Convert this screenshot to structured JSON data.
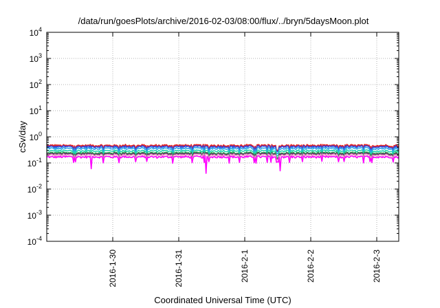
{
  "chart_data": {
    "type": "line",
    "title": "/data/run/goesPlots/archive/2016-02-03/08:00/flux/../bryn/5daysMoon.plot",
    "xlabel": "Coordinated Universal Time (UTC)",
    "ylabel": "cSv/day",
    "y_scale": "log",
    "ylim": [
      0.0001,
      10000
    ],
    "y_ticks": [
      {
        "value": 0.0001,
        "base": "10",
        "exp": "-4"
      },
      {
        "value": 0.001,
        "base": "10",
        "exp": "-3"
      },
      {
        "value": 0.01,
        "base": "10",
        "exp": "-2"
      },
      {
        "value": 0.1,
        "base": "10",
        "exp": "-1"
      },
      {
        "value": 1,
        "base": "10",
        "exp": "0"
      },
      {
        "value": 10,
        "base": "10",
        "exp": "1"
      },
      {
        "value": 100,
        "base": "10",
        "exp": "2"
      },
      {
        "value": 1000,
        "base": "10",
        "exp": "3"
      },
      {
        "value": 10000,
        "base": "10",
        "exp": "4"
      }
    ],
    "xlim": [
      "2016-01-29 00:00",
      "2016-02-03 08:00"
    ],
    "x_ticks": [
      {
        "value": "2016-01-30 00:00",
        "label": "2016-1-30"
      },
      {
        "value": "2016-01-31 00:00",
        "label": "2016-1-31"
      },
      {
        "value": "2016-02-01 00:00",
        "label": "2016-2-1"
      },
      {
        "value": "2016-02-02 00:00",
        "label": "2016-2-2"
      },
      {
        "value": "2016-02-03 00:00",
        "label": "2016-2-3"
      }
    ],
    "grid": true,
    "dips": [
      {
        "t": "2016-01-29 16:00",
        "v": 0.06
      },
      {
        "t": "2016-01-31 10:00",
        "v": 0.04
      },
      {
        "t": "2016-02-01 13:00",
        "v": 0.05
      }
    ],
    "series": [
      {
        "color": "#e8231f",
        "level": 0.46
      },
      {
        "color": "#3344dd",
        "level": 0.42
      },
      {
        "color": "#2aa5ea",
        "level": 0.36
      },
      {
        "color": "#22d8b0",
        "level": 0.29
      },
      {
        "color": "#29a34c",
        "level": 0.24
      },
      {
        "color": "#6a2a6a",
        "level": 0.22
      },
      {
        "color": "#f0aacc",
        "level": 0.2
      },
      {
        "color": "#ff00ff",
        "level": 0.17
      }
    ]
  }
}
